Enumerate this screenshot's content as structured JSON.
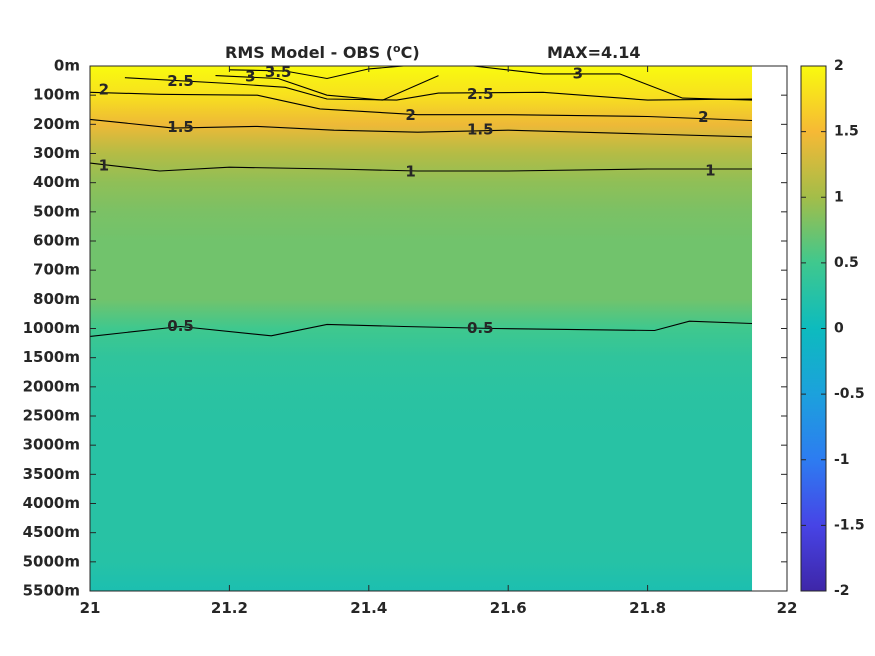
{
  "chart_data": {
    "type": "heatmap",
    "title": {
      "main": "RMS Model - OBS (",
      "unit_sup": "o",
      "unit_end": "C)",
      "max_label": "MAX=4.14"
    },
    "xlabel": "",
    "ylabel": "",
    "xlim": [
      21,
      22
    ],
    "x_data_extent": [
      21,
      21.95
    ],
    "x_ticks": [
      21,
      21.2,
      21.4,
      21.6,
      21.8,
      22
    ],
    "x_tick_labels": [
      "21",
      "21.2",
      "21.4",
      "21.6",
      "21.8",
      "22"
    ],
    "depth_levels": [
      "0m",
      "100m",
      "200m",
      "300m",
      "400m",
      "500m",
      "600m",
      "700m",
      "800m",
      "1000m",
      "1500m",
      "2000m",
      "2500m",
      "3000m",
      "3500m",
      "4000m",
      "4500m",
      "5000m",
      "5500m"
    ],
    "colorbar": {
      "range": [
        -2,
        2
      ],
      "ticks": [
        2,
        1.5,
        1,
        0.5,
        0,
        -0.5,
        -1,
        -1.5,
        -2
      ],
      "tick_labels": [
        "2",
        "1.5",
        "1",
        "0.5",
        "0",
        "-0.5",
        "-1",
        "-1.5",
        "-2"
      ],
      "colormap": "parula",
      "colors": [
        "#3e26a8",
        "#4744e6",
        "#2d7cf1",
        "#1ca1dc",
        "#0dbbbe",
        "#3fc88e",
        "#a3bd49",
        "#f6b935",
        "#f9fb0e"
      ]
    },
    "field_profile": [
      {
        "depth_index": 0,
        "value": 2.0
      },
      {
        "depth_index": 1,
        "value": 1.8
      },
      {
        "depth_index": 2,
        "value": 1.45
      },
      {
        "depth_index": 3,
        "value": 1.1
      },
      {
        "depth_index": 4,
        "value": 0.9
      },
      {
        "depth_index": 5,
        "value": 0.8
      },
      {
        "depth_index": 6,
        "value": 0.75
      },
      {
        "depth_index": 7,
        "value": 0.75
      },
      {
        "depth_index": 8,
        "value": 0.75
      },
      {
        "depth_index": 9,
        "value": 0.5
      },
      {
        "depth_index": 10,
        "value": 0.35
      },
      {
        "depth_index": 11,
        "value": 0.3
      },
      {
        "depth_index": 12,
        "value": 0.28
      },
      {
        "depth_index": 13,
        "value": 0.27
      },
      {
        "depth_index": 14,
        "value": 0.27
      },
      {
        "depth_index": 15,
        "value": 0.27
      },
      {
        "depth_index": 16,
        "value": 0.27
      },
      {
        "depth_index": 17,
        "value": 0.25
      },
      {
        "depth_index": 18,
        "value": 0.15
      }
    ],
    "contours": [
      {
        "level": 0.5,
        "points": [
          [
            21.0,
            9.27
          ],
          [
            21.13,
            8.93
          ],
          [
            21.26,
            9.25
          ],
          [
            21.34,
            8.86
          ],
          [
            21.45,
            8.93
          ],
          [
            21.58,
            9.0
          ],
          [
            21.81,
            9.07
          ],
          [
            21.86,
            8.75
          ],
          [
            21.95,
            8.83
          ]
        ]
      },
      {
        "level": 1,
        "points": [
          [
            21.0,
            3.33
          ],
          [
            21.1,
            3.6
          ],
          [
            21.2,
            3.47
          ],
          [
            21.35,
            3.53
          ],
          [
            21.47,
            3.6
          ],
          [
            21.6,
            3.6
          ],
          [
            21.8,
            3.53
          ],
          [
            21.95,
            3.53
          ]
        ]
      },
      {
        "level": 1.5,
        "points": [
          [
            21.0,
            1.83
          ],
          [
            21.12,
            2.13
          ],
          [
            21.24,
            2.07
          ],
          [
            21.35,
            2.2
          ],
          [
            21.47,
            2.27
          ],
          [
            21.6,
            2.2
          ],
          [
            21.8,
            2.33
          ],
          [
            21.95,
            2.43
          ]
        ]
      },
      {
        "level": 2,
        "points": [
          [
            21.0,
            0.9
          ],
          [
            21.1,
            0.97
          ],
          [
            21.24,
            1.0
          ],
          [
            21.33,
            1.47
          ],
          [
            21.47,
            1.67
          ],
          [
            21.6,
            1.67
          ],
          [
            21.8,
            1.73
          ],
          [
            21.95,
            1.87
          ]
        ]
      },
      {
        "level": 2.5,
        "points": [
          [
            21.05,
            0.4
          ],
          [
            21.2,
            0.6
          ],
          [
            21.28,
            0.73
          ],
          [
            21.34,
            1.13
          ],
          [
            21.44,
            1.17
          ],
          [
            21.5,
            0.93
          ],
          [
            21.65,
            0.9
          ],
          [
            21.8,
            1.17
          ],
          [
            21.95,
            1.13
          ]
        ]
      },
      {
        "level": 3,
        "points": [
          [
            21.18,
            0.33
          ],
          [
            21.27,
            0.43
          ],
          [
            21.34,
            1.0
          ],
          [
            21.42,
            1.17
          ],
          [
            21.5,
            0.33
          ]
        ]
      },
      {
        "level": 3,
        "points": [
          [
            21.55,
            0.0
          ],
          [
            21.65,
            0.27
          ],
          [
            21.76,
            0.27
          ],
          [
            21.85,
            1.1
          ],
          [
            21.95,
            1.17
          ]
        ]
      },
      {
        "level": 3.5,
        "points": [
          [
            21.2,
            0.13
          ],
          [
            21.28,
            0.17
          ],
          [
            21.34,
            0.43
          ],
          [
            21.4,
            0.1
          ],
          [
            21.45,
            0.0
          ]
        ]
      }
    ],
    "contour_labels": [
      {
        "text": "2",
        "x": 21.02,
        "y": 0.83
      },
      {
        "text": "2.5",
        "x": 21.13,
        "y": 0.53
      },
      {
        "text": "3",
        "x": 21.23,
        "y": 0.37
      },
      {
        "text": "3.5",
        "x": 21.27,
        "y": 0.23
      },
      {
        "text": "2.5",
        "x": 21.56,
        "y": 0.97
      },
      {
        "text": "3",
        "x": 21.7,
        "y": 0.27
      },
      {
        "text": "2",
        "x": 21.46,
        "y": 1.7
      },
      {
        "text": "2",
        "x": 21.88,
        "y": 1.77
      },
      {
        "text": "1.5",
        "x": 21.13,
        "y": 2.1
      },
      {
        "text": "1.5",
        "x": 21.56,
        "y": 2.2
      },
      {
        "text": "1",
        "x": 21.02,
        "y": 3.43
      },
      {
        "text": "1",
        "x": 21.46,
        "y": 3.63
      },
      {
        "text": "1",
        "x": 21.89,
        "y": 3.6
      },
      {
        "text": "0.5",
        "x": 21.13,
        "y": 8.93
      },
      {
        "text": "0.5",
        "x": 21.56,
        "y": 9.0
      }
    ],
    "grid": false,
    "legend": "colorbar-right"
  }
}
